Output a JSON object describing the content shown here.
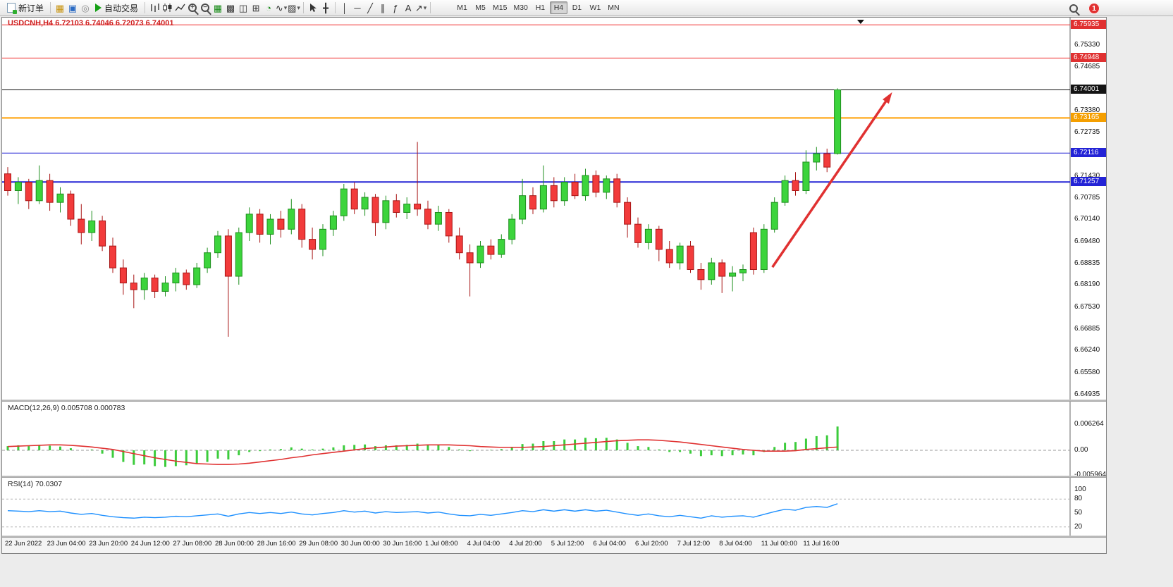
{
  "toolbar": {
    "new_order_label": "新订单",
    "auto_trading_label": "自动交易",
    "timeframes": [
      "M1",
      "M5",
      "M15",
      "M30",
      "H1",
      "H4",
      "D1",
      "W1",
      "MN"
    ],
    "active_timeframe": "H4",
    "notification_badge": "1",
    "glyphs": {
      "market_depth": "▦",
      "new_window": "▣",
      "data_window": "◎",
      "tile_windows": "▦",
      "cascade_windows": "▩",
      "tile_horizontal": "◫",
      "new_chart": "⊞",
      "period": "◔",
      "indicators": "∿",
      "templates": "▨",
      "crosshair": "╋",
      "vertical_line": "│",
      "horizontal_line": "─",
      "trendline": "╱",
      "channel": "∥",
      "fibonacci": "ƒ",
      "text_tool": "A",
      "arrow_tool": "↗",
      "dropdown": "▾"
    }
  },
  "chart": {
    "symbol_title": "USDCNH,H4 6.72103 6.74046 6.72073 6.74001",
    "price_ticks": [
      "6.75330",
      "6.74685",
      "6.73380",
      "6.72735",
      "6.71430",
      "6.70785",
      "6.70140",
      "6.69480",
      "6.68835",
      "6.68190",
      "6.67530",
      "6.66885",
      "6.66240",
      "6.65580",
      "6.64935"
    ],
    "price_badges": [
      {
        "text": "6.75935",
        "color": "#e03131"
      },
      {
        "text": "6.74948",
        "color": "#e03131"
      },
      {
        "text": "6.74001",
        "color": "#141414"
      },
      {
        "text": "6.73165",
        "color": "#f59f00"
      },
      {
        "text": "6.72116",
        "color": "#2323d6"
      },
      {
        "text": "6.71257",
        "color": "#2323d6"
      }
    ],
    "hlines": [
      {
        "price": 6.75935,
        "color": "#f03030",
        "width": 1
      },
      {
        "price": 6.74948,
        "color": "#f03030",
        "width": 1
      },
      {
        "price": 6.74001,
        "color": "#101010",
        "width": 1
      },
      {
        "price": 6.73165,
        "color": "#ff9f00",
        "width": 2
      },
      {
        "price": 6.72116,
        "color": "#2323d6",
        "width": 1
      },
      {
        "price": 6.71257,
        "color": "#2323d6",
        "width": 2
      }
    ]
  },
  "macd": {
    "label": "MACD(12,26,9) 0.005708 0.000783",
    "axis": [
      "0.006264",
      "0.00",
      "-0.005964"
    ]
  },
  "rsi": {
    "label": "RSI(14) 70.0307",
    "axis": [
      "100",
      "80",
      "50",
      "20"
    ]
  },
  "chart_data": {
    "type": "candlestick",
    "symbol": "USDCNH",
    "timeframe": "H4",
    "y_range": [
      6.648,
      6.7613
    ],
    "last_ohlc": {
      "open": 6.72103,
      "high": 6.74046,
      "low": 6.72073,
      "close": 6.74001
    },
    "time_labels": [
      "22 Jun 2022",
      "23 Jun 04:00",
      "23 Jun 20:00",
      "24 Jun 12:00",
      "27 Jun 08:00",
      "28 Jun 00:00",
      "28 Jun 16:00",
      "29 Jun 08:00",
      "30 Jun 00:00",
      "30 Jun 16:00",
      "1 Jul 08:00",
      "4 Jul 04:00",
      "4 Jul 20:00",
      "5 Jul 12:00",
      "6 Jul 04:00",
      "6 Jul 20:00",
      "7 Jul 12:00",
      "8 Jul 04:00",
      "11 Jul 00:00",
      "11 Jul 16:00"
    ],
    "label_every": 4,
    "candles": [
      [
        6.715,
        6.717,
        6.7085,
        6.71
      ],
      [
        6.71,
        6.714,
        6.706,
        6.7125
      ],
      [
        6.7125,
        6.7135,
        6.7045,
        6.707
      ],
      [
        6.707,
        6.7175,
        6.706,
        6.713
      ],
      [
        6.713,
        6.715,
        6.704,
        6.7065
      ],
      [
        6.7065,
        6.711,
        6.7035,
        6.709
      ],
      [
        6.709,
        6.71,
        6.6995,
        6.7015
      ],
      [
        6.7015,
        6.706,
        6.694,
        6.6975
      ],
      [
        6.6975,
        6.704,
        6.695,
        6.701
      ],
      [
        6.701,
        6.7025,
        6.692,
        6.6935
      ],
      [
        6.6935,
        6.696,
        6.6855,
        6.687
      ],
      [
        6.687,
        6.6895,
        6.679,
        6.6825
      ],
      [
        6.6825,
        6.685,
        6.675,
        6.6805
      ],
      [
        6.6805,
        6.6855,
        6.6775,
        6.684
      ],
      [
        6.684,
        6.685,
        6.678,
        6.68
      ],
      [
        6.68,
        6.6845,
        6.6785,
        6.6825
      ],
      [
        6.6825,
        6.687,
        6.68,
        6.6855
      ],
      [
        6.6855,
        6.6865,
        6.6805,
        6.682
      ],
      [
        6.682,
        6.6885,
        6.681,
        6.687
      ],
      [
        6.687,
        6.693,
        6.6855,
        6.6915
      ],
      [
        6.6915,
        6.698,
        6.69,
        6.6965
      ],
      [
        6.6965,
        6.6985,
        6.6665,
        6.6845
      ],
      [
        6.6845,
        6.699,
        6.682,
        6.6975
      ],
      [
        6.6975,
        6.705,
        6.695,
        6.703
      ],
      [
        6.703,
        6.7045,
        6.6945,
        6.697
      ],
      [
        6.697,
        6.703,
        6.694,
        6.7015
      ],
      [
        6.7015,
        6.704,
        6.696,
        6.6985
      ],
      [
        6.6985,
        6.7075,
        6.697,
        6.7045
      ],
      [
        6.7045,
        6.706,
        6.693,
        6.6955
      ],
      [
        6.6955,
        6.699,
        6.6895,
        6.6925
      ],
      [
        6.6925,
        6.7,
        6.6905,
        6.6985
      ],
      [
        6.6985,
        6.704,
        6.6965,
        6.7025
      ],
      [
        6.7025,
        6.712,
        6.701,
        6.7105
      ],
      [
        6.7105,
        6.7125,
        6.703,
        6.7045
      ],
      [
        6.7045,
        6.7095,
        6.7025,
        6.708
      ],
      [
        6.708,
        6.709,
        6.6965,
        6.7005
      ],
      [
        6.7005,
        6.7085,
        6.6985,
        6.707
      ],
      [
        6.707,
        6.709,
        6.702,
        6.7035
      ],
      [
        6.7035,
        6.708,
        6.7015,
        6.706
      ],
      [
        6.706,
        6.7245,
        6.7025,
        6.7045
      ],
      [
        6.7045,
        6.707,
        6.6985,
        6.7
      ],
      [
        6.7,
        6.7055,
        6.698,
        6.7035
      ],
      [
        6.7035,
        6.7045,
        6.6945,
        6.6965
      ],
      [
        6.6965,
        6.699,
        6.6895,
        6.6915
      ],
      [
        6.6915,
        6.694,
        6.6785,
        6.6885
      ],
      [
        6.6885,
        6.695,
        6.687,
        6.6935
      ],
      [
        6.6935,
        6.6955,
        6.6895,
        6.691
      ],
      [
        6.691,
        6.697,
        6.69,
        6.6955
      ],
      [
        6.6955,
        6.703,
        6.694,
        6.7015
      ],
      [
        6.7015,
        6.7135,
        6.7,
        6.7085
      ],
      [
        6.7085,
        6.711,
        6.703,
        6.7045
      ],
      [
        6.7045,
        6.7175,
        6.7035,
        6.7115
      ],
      [
        6.7115,
        6.714,
        6.705,
        6.707
      ],
      [
        6.707,
        6.714,
        6.7055,
        6.7125
      ],
      [
        6.7125,
        6.715,
        6.7075,
        6.7085
      ],
      [
        6.7085,
        6.7165,
        6.707,
        6.7145
      ],
      [
        6.7145,
        6.716,
        6.708,
        6.7095
      ],
      [
        6.7095,
        6.7145,
        6.7075,
        6.7135
      ],
      [
        6.7135,
        6.715,
        6.705,
        6.7065
      ],
      [
        6.7065,
        6.708,
        6.696,
        6.7
      ],
      [
        6.7,
        6.702,
        6.693,
        6.6945
      ],
      [
        6.6945,
        6.7,
        6.6925,
        6.6985
      ],
      [
        6.6985,
        6.6995,
        6.689,
        6.6925
      ],
      [
        6.6925,
        6.695,
        6.687,
        6.6885
      ],
      [
        6.6885,
        6.6945,
        6.6865,
        6.6935
      ],
      [
        6.6935,
        6.695,
        6.6855,
        6.6865
      ],
      [
        6.6865,
        6.6885,
        6.6805,
        6.6835
      ],
      [
        6.6835,
        6.69,
        6.682,
        6.6885
      ],
      [
        6.6885,
        6.6895,
        6.6795,
        6.6845
      ],
      [
        6.6845,
        6.6875,
        6.68,
        6.6855
      ],
      [
        6.6855,
        6.688,
        6.683,
        6.6865
      ],
      [
        6.6975,
        6.699,
        6.685,
        6.6865
      ],
      [
        6.6865,
        6.7,
        6.6855,
        6.6985
      ],
      [
        6.6985,
        6.708,
        6.6975,
        6.7065
      ],
      [
        6.7065,
        6.7145,
        6.7055,
        6.713
      ],
      [
        6.713,
        6.7155,
        6.7085,
        6.71
      ],
      [
        6.71,
        6.722,
        6.709,
        6.7185
      ],
      [
        6.7185,
        6.723,
        6.716,
        6.721
      ],
      [
        6.721,
        6.7225,
        6.7155,
        6.717
      ],
      [
        6.72103,
        6.74046,
        6.72073,
        6.74001
      ]
    ],
    "annotations": {
      "trend_arrow": {
        "from_index": 72.8,
        "from_price": 6.6872,
        "to_index": 84.2,
        "to_price": 6.7393,
        "color": "#e03131"
      },
      "shift_marker_index": 81.2
    },
    "indicators": {
      "macd": {
        "histogram": [
          0.001,
          0.0012,
          0.001,
          0.0013,
          0.0011,
          0.0009,
          0.0005,
          0.0,
          0.0002,
          -0.0008,
          -0.0018,
          -0.0028,
          -0.0035,
          -0.0034,
          -0.0038,
          -0.004,
          -0.0038,
          -0.0036,
          -0.0032,
          -0.0028,
          -0.002,
          -0.0022,
          -0.0012,
          -0.0004,
          -0.0002,
          0.0002,
          0.0003,
          0.0007,
          0.0004,
          0.0002,
          0.0004,
          0.0007,
          0.0012,
          0.0013,
          0.0014,
          0.001,
          0.0012,
          0.0012,
          0.0013,
          0.0016,
          0.0012,
          0.0012,
          0.0008,
          0.0002,
          -0.0002,
          0.0,
          0.0001,
          0.0003,
          0.0008,
          0.0015,
          0.0016,
          0.0022,
          0.0022,
          0.0026,
          0.0026,
          0.003,
          0.0029,
          0.003,
          0.0026,
          0.0018,
          0.001,
          0.0008,
          0.0002,
          -0.0004,
          -0.0004,
          -0.0008,
          -0.0014,
          -0.0012,
          -0.0014,
          -0.0012,
          -0.001,
          -0.0012,
          -0.0004,
          0.0008,
          0.0018,
          0.002,
          0.0028,
          0.0034,
          0.0036,
          0.005708
        ],
        "signal": [
          0.0009,
          0.001,
          0.0011,
          0.0012,
          0.0013,
          0.0013,
          0.0012,
          0.001,
          0.0008,
          0.0005,
          0.0002,
          -0.0003,
          -0.0008,
          -0.0013,
          -0.0018,
          -0.0022,
          -0.0026,
          -0.0029,
          -0.0032,
          -0.0033,
          -0.0034,
          -0.0034,
          -0.0033,
          -0.0031,
          -0.0028,
          -0.0025,
          -0.0022,
          -0.0018,
          -0.0015,
          -0.0011,
          -0.0008,
          -0.0005,
          -0.0002,
          0.0001,
          0.0004,
          0.0006,
          0.0008,
          0.001,
          0.0011,
          0.0012,
          0.0013,
          0.0013,
          0.0013,
          0.0012,
          0.0011,
          0.0009,
          0.0008,
          0.0007,
          0.0007,
          0.0007,
          0.0008,
          0.0009,
          0.0011,
          0.0013,
          0.0015,
          0.0017,
          0.0019,
          0.0021,
          0.0023,
          0.0024,
          0.0025,
          0.0025,
          0.0024,
          0.0022,
          0.002,
          0.0017,
          0.0014,
          0.0011,
          0.0008,
          0.0005,
          0.0002,
          0.0,
          -0.0002,
          -0.0002,
          -0.0002,
          -0.0001,
          0.0002,
          0.0004,
          0.0006,
          0.000783
        ],
        "colors": {
          "histogram": "#3ccc3c",
          "signal": "#e03131"
        }
      },
      "rsi": {
        "values": [
          55,
          54,
          53,
          55,
          53,
          54,
          50,
          47,
          49,
          45,
          42,
          40,
          39,
          41,
          40,
          41,
          43,
          42,
          44,
          46,
          48,
          43,
          48,
          51,
          49,
          51,
          49,
          52,
          48,
          46,
          49,
          51,
          55,
          52,
          54,
          50,
          53,
          51,
          52,
          53,
          50,
          52,
          48,
          45,
          44,
          47,
          45,
          48,
          51,
          55,
          53,
          57,
          54,
          57,
          54,
          57,
          54,
          56,
          52,
          48,
          45,
          48,
          44,
          42,
          45,
          42,
          39,
          44,
          41,
          43,
          44,
          41,
          47,
          53,
          58,
          56,
          62,
          64,
          62,
          70.03
        ],
        "levels": [
          80,
          20
        ],
        "color": "#1e90ff"
      }
    }
  }
}
